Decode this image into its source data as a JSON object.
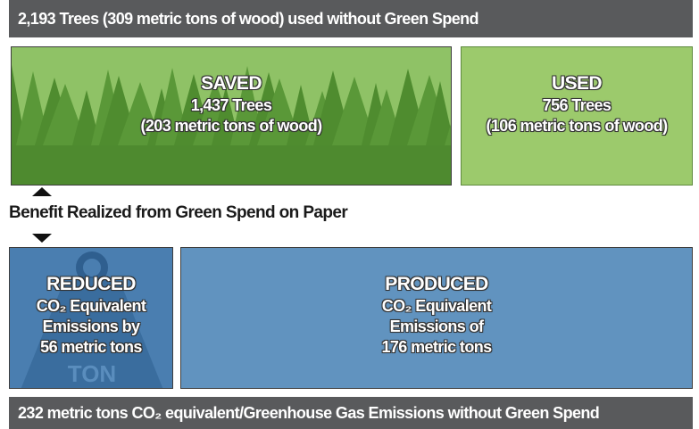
{
  "header": {
    "title": "2,193 Trees (309 metric tons of wood) used without Green Spend"
  },
  "saved": {
    "heading": "SAVED",
    "line1": "1,437 Trees",
    "line2": "(203 metric tons of wood)"
  },
  "used": {
    "heading": "USED",
    "line1": "756 Trees",
    "line2": "(106 metric tons of wood)"
  },
  "benefit": {
    "label": "Benefit Realized from Green Spend on Paper"
  },
  "reduced": {
    "heading": "REDUCED",
    "line1": "CO₂ Equivalent",
    "line2": "Emissions by",
    "line3": "56 metric tons",
    "icon_label": "TON"
  },
  "produced": {
    "heading": "PRODUCED",
    "line1": "CO₂ Equivalent",
    "line2": "Emissions of",
    "line3": "176 metric tons"
  },
  "footer": {
    "title": "232 metric tons CO₂ equivalent/Greenhouse Gas Emissions without Green Spend"
  }
}
